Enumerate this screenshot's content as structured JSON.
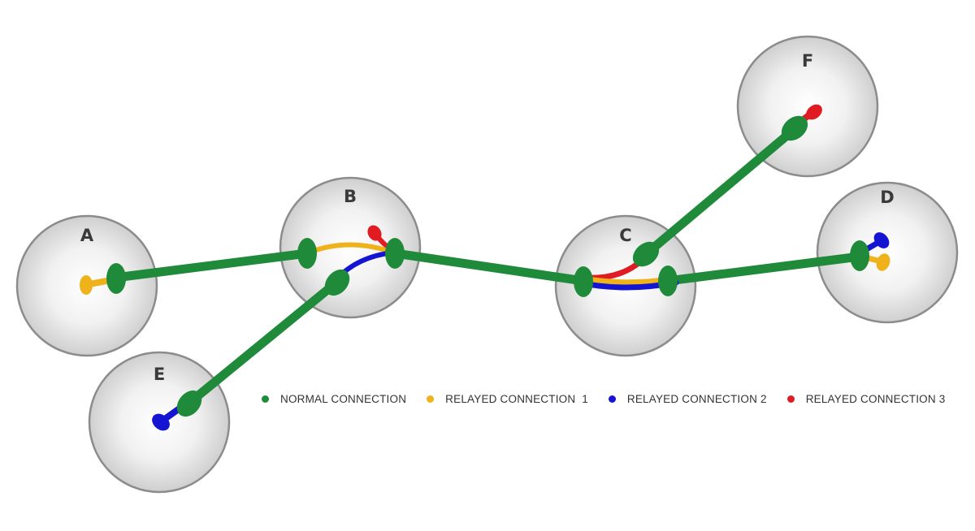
{
  "nodes": [
    {
      "id": "A",
      "label": "A"
    },
    {
      "id": "B",
      "label": "B"
    },
    {
      "id": "C",
      "label": "C"
    },
    {
      "id": "D",
      "label": "D"
    },
    {
      "id": "E",
      "label": "E"
    },
    {
      "id": "F",
      "label": "F"
    }
  ],
  "connections": [
    {
      "from": "A",
      "to": "B",
      "type": "normal"
    },
    {
      "from": "B",
      "to": "C",
      "type": "normal"
    },
    {
      "from": "E",
      "to": "B",
      "type": "normal"
    },
    {
      "from": "C",
      "to": "D",
      "type": "normal"
    },
    {
      "from": "C",
      "to": "F",
      "type": "normal"
    }
  ],
  "relays": [
    {
      "name": "relayed-connection-1",
      "path": [
        "A",
        "B",
        "C",
        "D"
      ]
    },
    {
      "name": "relayed-connection-2",
      "path": [
        "E",
        "B",
        "C",
        "D"
      ]
    },
    {
      "name": "relayed-connection-3",
      "path": [
        "B",
        "C",
        "F"
      ]
    }
  ],
  "colors": {
    "normal": "#1f8a3a",
    "relay1": "#f0b21a",
    "relay2": "#1414d2",
    "relay3": "#e01b22",
    "node_fill": "#e3e3e3",
    "node_stroke": "#8c8c8c"
  },
  "legend": [
    {
      "label": "NORMAL CONNECTION",
      "color": "#1f8a3a"
    },
    {
      "label": "RELAYED CONNECTION  1",
      "color": "#f0b21a"
    },
    {
      "label": "RELAYED CONNECTION 2",
      "color": "#1414d2"
    },
    {
      "label": "RELAYED CONNECTION 3",
      "color": "#e01b22"
    }
  ]
}
